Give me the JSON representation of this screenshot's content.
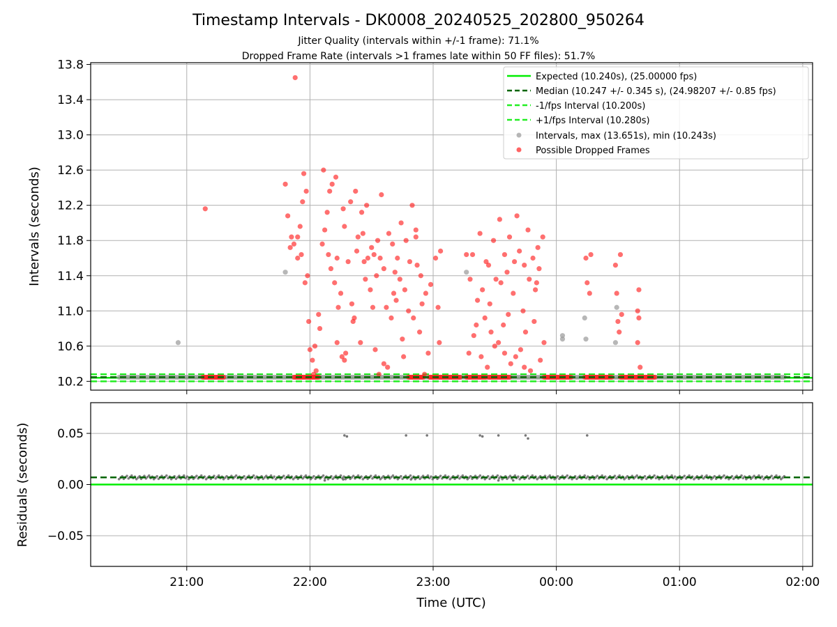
{
  "colors": {
    "expected": "#00ee00",
    "median": "#006400",
    "fps_band": "#22ee22",
    "intervals": "#999999",
    "dropped": "#ff2222",
    "residuals": "#555555",
    "grid": "#b0b0b0"
  },
  "chart_data": [
    {
      "type": "scatter",
      "title": "Timestamp Intervals - DK0008_20240525_202800_950264",
      "subtitle_1": "Jitter Quality (intervals within +/-1 frame): 71.1%",
      "subtitle_2": "Dropped Frame Rate (intervals >1 frames late within 50 FF files): 51.7%",
      "xlabel": "",
      "ylabel": "Intervals (seconds)",
      "x_axis": "time (UTC), hours after 20:00",
      "xlim": [
        0.22,
        6.08
      ],
      "ylim": [
        10.1,
        13.82
      ],
      "yticks": [
        10.2,
        10.6,
        11.0,
        11.4,
        11.8,
        12.2,
        12.6,
        13.0,
        13.4,
        13.8
      ],
      "ytick_labels": [
        "10.2",
        "10.6",
        "11.0",
        "11.4",
        "11.8",
        "12.2",
        "12.6",
        "13.0",
        "13.4",
        "13.8"
      ],
      "grid": true,
      "legend_placement": "top-right",
      "legend": [
        "Expected (10.240s), (25.00000 fps)",
        "Median (10.247 +/- 0.345 s), (24.98207 +/- 0.85 fps)",
        "-1/fps Interval (10.200s)",
        "+1/fps Interval (10.280s)",
        "Intervals, max (13.651s), min (10.243s)",
        "Possible Dropped Frames"
      ],
      "hlines": {
        "expected": 10.24,
        "median": 10.247,
        "minus_fps": 10.2,
        "plus_fps": 10.28
      },
      "baseline_interval": 10.247,
      "baseline_x_range": [
        0.45,
        5.85
      ],
      "dropped_baseline_ranges": [
        [
          1.13,
          1.3
        ],
        [
          1.87,
          2.07
        ],
        [
          2.8,
          2.92
        ],
        [
          2.97,
          3.22
        ],
        [
          3.27,
          3.43
        ],
        [
          3.45,
          3.62
        ],
        [
          3.9,
          4.12
        ],
        [
          4.23,
          4.45
        ],
        [
          4.52,
          4.8
        ]
      ],
      "intervals_scatter": [
        [
          0.93,
          10.64
        ],
        [
          1.8,
          11.44
        ],
        [
          3.27,
          11.44
        ],
        [
          4.05,
          10.72
        ],
        [
          4.05,
          10.68
        ],
        [
          4.23,
          10.92
        ],
        [
          4.24,
          10.68
        ],
        [
          4.49,
          11.04
        ],
        [
          4.48,
          10.64
        ]
      ],
      "dropped_scatter": [
        [
          1.15,
          12.16
        ],
        [
          1.88,
          13.65
        ],
        [
          1.8,
          12.44
        ],
        [
          1.82,
          12.08
        ],
        [
          1.85,
          11.84
        ],
        [
          1.87,
          11.76
        ],
        [
          1.9,
          11.6
        ],
        [
          1.92,
          11.96
        ],
        [
          1.94,
          12.24
        ],
        [
          1.95,
          12.56
        ],
        [
          1.97,
          12.36
        ],
        [
          1.96,
          11.32
        ],
        [
          1.98,
          11.4
        ],
        [
          1.99,
          10.88
        ],
        [
          2.0,
          10.56
        ],
        [
          2.02,
          10.44
        ],
        [
          2.03,
          10.28
        ],
        [
          2.05,
          10.32
        ],
        [
          2.04,
          10.6
        ],
        [
          1.84,
          11.72
        ],
        [
          1.93,
          11.64
        ],
        [
          1.9,
          11.84
        ],
        [
          2.07,
          10.96
        ],
        [
          2.08,
          10.8
        ],
        [
          2.1,
          11.76
        ],
        [
          2.11,
          12.6
        ],
        [
          2.12,
          11.92
        ],
        [
          2.14,
          12.12
        ],
        [
          2.15,
          11.64
        ],
        [
          2.16,
          12.36
        ],
        [
          2.17,
          11.48
        ],
        [
          2.18,
          12.44
        ],
        [
          2.2,
          11.32
        ],
        [
          2.21,
          12.52
        ],
        [
          2.22,
          10.64
        ],
        [
          2.23,
          11.04
        ],
        [
          2.25,
          11.2
        ],
        [
          2.26,
          10.48
        ],
        [
          2.27,
          12.16
        ],
        [
          2.28,
          11.96
        ],
        [
          2.29,
          10.52
        ],
        [
          2.31,
          11.56
        ],
        [
          2.33,
          12.24
        ],
        [
          2.34,
          11.08
        ],
        [
          2.35,
          10.88
        ],
        [
          2.37,
          12.36
        ],
        [
          2.38,
          11.68
        ],
        [
          2.39,
          11.84
        ],
        [
          2.41,
          10.64
        ],
        [
          2.42,
          12.12
        ],
        [
          2.43,
          11.88
        ],
        [
          2.45,
          11.36
        ],
        [
          2.46,
          12.2
        ],
        [
          2.47,
          11.6
        ],
        [
          2.49,
          11.24
        ],
        [
          2.5,
          11.72
        ],
        [
          2.51,
          11.04
        ],
        [
          2.53,
          10.56
        ],
        [
          2.54,
          11.4
        ],
        [
          2.55,
          11.8
        ],
        [
          2.57,
          11.6
        ],
        [
          2.58,
          12.32
        ],
        [
          2.6,
          11.48
        ],
        [
          2.62,
          11.04
        ],
        [
          2.63,
          10.36
        ],
        [
          2.64,
          11.88
        ],
        [
          2.66,
          10.92
        ],
        [
          2.67,
          11.76
        ],
        [
          2.69,
          11.44
        ],
        [
          2.7,
          11.12
        ],
        [
          2.71,
          11.6
        ],
        [
          2.73,
          11.36
        ],
        [
          2.74,
          12.0
        ],
        [
          2.75,
          10.68
        ],
        [
          2.77,
          11.24
        ],
        [
          2.78,
          11.8
        ],
        [
          2.8,
          11.0
        ],
        [
          2.81,
          11.56
        ],
        [
          2.83,
          12.2
        ],
        [
          2.84,
          10.92
        ],
        [
          2.86,
          11.84
        ],
        [
          2.87,
          11.52
        ],
        [
          2.89,
          10.76
        ],
        [
          2.9,
          11.4
        ],
        [
          2.91,
          11.08
        ],
        [
          2.93,
          10.28
        ],
        [
          2.94,
          11.2
        ],
        [
          2.96,
          10.52
        ],
        [
          2.98,
          11.3
        ],
        [
          3.02,
          11.6
        ],
        [
          3.05,
          10.64
        ],
        [
          3.06,
          11.68
        ],
        [
          3.04,
          11.04
        ],
        [
          2.28,
          10.44
        ],
        [
          2.36,
          10.92
        ],
        [
          2.44,
          11.56
        ],
        [
          2.52,
          11.64
        ],
        [
          2.6,
          10.4
        ],
        [
          2.68,
          11.2
        ],
        [
          2.76,
          10.48
        ],
        [
          2.86,
          11.92
        ],
        [
          2.56,
          10.28
        ],
        [
          2.22,
          11.6
        ],
        [
          3.27,
          11.64
        ],
        [
          3.29,
          10.52
        ],
        [
          3.3,
          11.36
        ],
        [
          3.32,
          11.64
        ],
        [
          3.33,
          10.72
        ],
        [
          3.35,
          10.84
        ],
        [
          3.36,
          11.12
        ],
        [
          3.38,
          11.88
        ],
        [
          3.39,
          10.48
        ],
        [
          3.4,
          11.24
        ],
        [
          3.42,
          10.92
        ],
        [
          3.43,
          11.56
        ],
        [
          3.44,
          10.36
        ],
        [
          3.46,
          11.08
        ],
        [
          3.47,
          10.76
        ],
        [
          3.49,
          11.8
        ],
        [
          3.5,
          10.6
        ],
        [
          3.51,
          11.36
        ],
        [
          3.53,
          10.64
        ],
        [
          3.54,
          12.04
        ],
        [
          3.55,
          11.32
        ],
        [
          3.57,
          10.84
        ],
        [
          3.58,
          11.64
        ],
        [
          3.6,
          11.44
        ],
        [
          3.61,
          10.96
        ],
        [
          3.62,
          11.84
        ],
        [
          3.63,
          10.4
        ],
        [
          3.65,
          11.2
        ],
        [
          3.67,
          10.48
        ],
        [
          3.68,
          12.08
        ],
        [
          3.7,
          11.68
        ],
        [
          3.71,
          10.56
        ],
        [
          3.73,
          11.0
        ],
        [
          3.74,
          11.52
        ],
        [
          3.75,
          10.76
        ],
        [
          3.77,
          11.92
        ],
        [
          3.78,
          11.36
        ],
        [
          3.79,
          10.32
        ],
        [
          3.81,
          11.6
        ],
        [
          3.82,
          10.88
        ],
        [
          3.83,
          11.24
        ],
        [
          3.85,
          11.72
        ],
        [
          3.86,
          11.48
        ],
        [
          3.87,
          10.44
        ],
        [
          3.89,
          11.84
        ],
        [
          3.9,
          10.64
        ],
        [
          3.45,
          11.52
        ],
        [
          3.58,
          10.52
        ],
        [
          3.66,
          11.56
        ],
        [
          3.74,
          10.36
        ],
        [
          3.84,
          11.32
        ],
        [
          4.24,
          11.6
        ],
        [
          4.25,
          11.32
        ],
        [
          4.27,
          11.2
        ],
        [
          4.28,
          11.64
        ],
        [
          4.48,
          11.52
        ],
        [
          4.49,
          11.2
        ],
        [
          4.5,
          10.88
        ],
        [
          4.51,
          10.76
        ],
        [
          4.52,
          11.64
        ],
        [
          4.53,
          10.96
        ],
        [
          4.66,
          11.0
        ],
        [
          4.67,
          11.24
        ],
        [
          4.67,
          10.92
        ],
        [
          4.66,
          10.64
        ],
        [
          4.68,
          10.36
        ]
      ]
    },
    {
      "type": "scatter",
      "xlabel": "Time (UTC)",
      "ylabel": "Residuals (seconds)",
      "xlim": [
        0.22,
        6.08
      ],
      "ylim": [
        -0.08,
        0.08
      ],
      "yticks": [
        -0.05,
        0.0,
        0.05
      ],
      "ytick_labels": [
        "−0.05",
        "0.00",
        "0.05"
      ],
      "xticks": [
        1,
        2,
        3,
        4,
        5,
        6
      ],
      "xtick_labels": [
        "21:00",
        "22:00",
        "23:00",
        "00:00",
        "01:00",
        "02:00"
      ],
      "grid": true,
      "hlines": {
        "zero": 0.0,
        "median_offset": 0.007
      },
      "residual_baseline": 0.007,
      "residual_baseline_x_range": [
        0.45,
        5.85
      ],
      "residual_outliers": [
        [
          2.28,
          0.048
        ],
        [
          2.3,
          0.047
        ],
        [
          2.78,
          0.048
        ],
        [
          2.95,
          0.048
        ],
        [
          3.38,
          0.048
        ],
        [
          3.4,
          0.047
        ],
        [
          3.53,
          0.048
        ],
        [
          3.75,
          0.048
        ],
        [
          3.77,
          0.045
        ],
        [
          4.25,
          0.048
        ],
        [
          2.12,
          0.004
        ],
        [
          2.27,
          0.005
        ],
        [
          3.53,
          0.004
        ],
        [
          3.65,
          0.004
        ],
        [
          2.82,
          0.005
        ]
      ]
    }
  ]
}
